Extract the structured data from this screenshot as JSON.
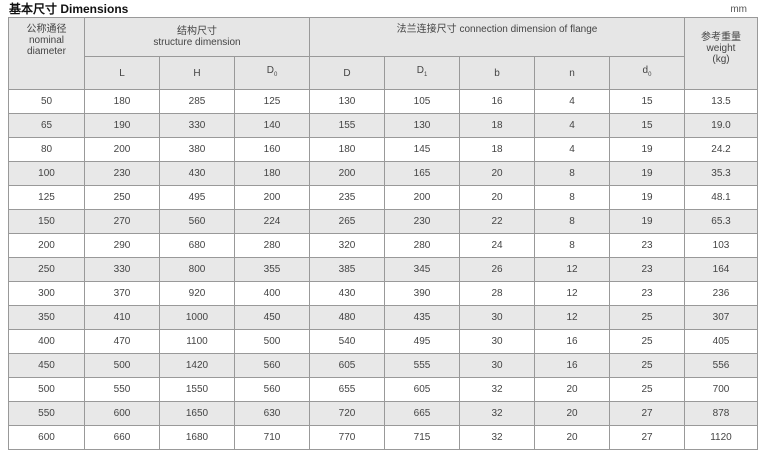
{
  "title": "基本尺寸  Dimensions",
  "unit": "mm",
  "header": {
    "nominal_cn": "公称通径",
    "nominal_en1": "nominal",
    "nominal_en2": "diameter",
    "structure_cn": "结构尺寸",
    "structure_en": "structure dimension",
    "flange": "法兰连接尺寸 connection dimension of flange",
    "weight_cn": "参考重量",
    "weight_en": "weight",
    "weight_unit": "(kg)",
    "cols": {
      "L": "L",
      "H": "H",
      "D0": "D",
      "D0_sub": "0",
      "D": "D",
      "D1": "D",
      "D1_sub": "1",
      "b": "b",
      "n": "n",
      "d0": "d",
      "d0_sub": "0"
    }
  },
  "rows": [
    [
      "50",
      "180",
      "285",
      "125",
      "130",
      "105",
      "16",
      "4",
      "15",
      "13.5"
    ],
    [
      "65",
      "190",
      "330",
      "140",
      "155",
      "130",
      "18",
      "4",
      "15",
      "19.0"
    ],
    [
      "80",
      "200",
      "380",
      "160",
      "180",
      "145",
      "18",
      "4",
      "19",
      "24.2"
    ],
    [
      "100",
      "230",
      "430",
      "180",
      "200",
      "165",
      "20",
      "8",
      "19",
      "35.3"
    ],
    [
      "125",
      "250",
      "495",
      "200",
      "235",
      "200",
      "20",
      "8",
      "19",
      "48.1"
    ],
    [
      "150",
      "270",
      "560",
      "224",
      "265",
      "230",
      "22",
      "8",
      "19",
      "65.3"
    ],
    [
      "200",
      "290",
      "680",
      "280",
      "320",
      "280",
      "24",
      "8",
      "23",
      "103"
    ],
    [
      "250",
      "330",
      "800",
      "355",
      "385",
      "345",
      "26",
      "12",
      "23",
      "164"
    ],
    [
      "300",
      "370",
      "920",
      "400",
      "430",
      "390",
      "28",
      "12",
      "23",
      "236"
    ],
    [
      "350",
      "410",
      "1000",
      "450",
      "480",
      "435",
      "30",
      "12",
      "25",
      "307"
    ],
    [
      "400",
      "470",
      "1100",
      "500",
      "540",
      "495",
      "30",
      "16",
      "25",
      "405"
    ],
    [
      "450",
      "500",
      "1420",
      "560",
      "605",
      "555",
      "30",
      "16",
      "25",
      "556"
    ],
    [
      "500",
      "550",
      "1550",
      "560",
      "655",
      "605",
      "32",
      "20",
      "25",
      "700"
    ],
    [
      "550",
      "600",
      "1650",
      "630",
      "720",
      "665",
      "32",
      "20",
      "27",
      "878"
    ],
    [
      "600",
      "660",
      "1680",
      "710",
      "770",
      "715",
      "32",
      "20",
      "27",
      "1120"
    ]
  ]
}
